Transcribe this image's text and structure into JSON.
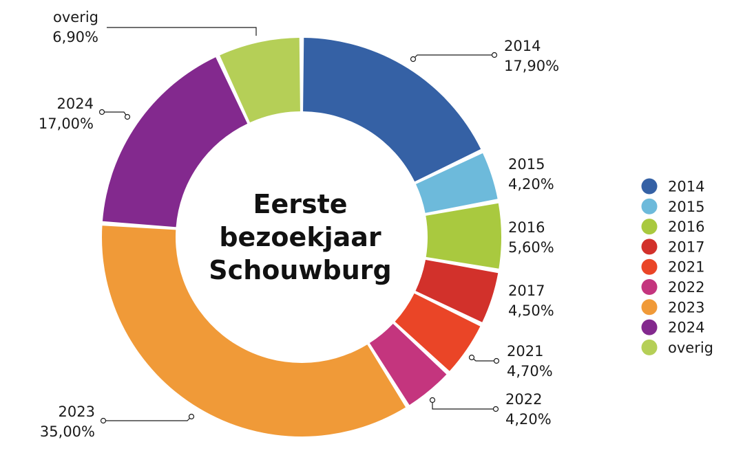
{
  "chart_data": {
    "type": "pie",
    "title": "Eerste bezoekjaar Schouwburg",
    "title_lines": [
      "Eerste",
      "bezoekjaar",
      "Schouwburg"
    ],
    "style": "donut",
    "slices": [
      {
        "name": "2014",
        "value": 17.9,
        "label": "17,90%",
        "color": "#3561a5"
      },
      {
        "name": "2015",
        "value": 4.2,
        "label": "4,20%",
        "color": "#6dbadb"
      },
      {
        "name": "2016",
        "value": 5.6,
        "label": "5,60%",
        "color": "#a9c93f"
      },
      {
        "name": "2017",
        "value": 4.5,
        "label": "4,50%",
        "color": "#d2312b"
      },
      {
        "name": "2021",
        "value": 4.7,
        "label": "4,70%",
        "color": "#ea4527"
      },
      {
        "name": "2022",
        "value": 4.2,
        "label": "4,20%",
        "color": "#c4357e"
      },
      {
        "name": "2023",
        "value": 35.0,
        "label": "35,00%",
        "color": "#f09a38"
      },
      {
        "name": "2024",
        "value": 17.0,
        "label": "17,00%",
        "color": "#83298e"
      },
      {
        "name": "overig",
        "value": 6.9,
        "label": "6,90%",
        "color": "#b5cf57"
      }
    ],
    "legend_position": "right"
  }
}
